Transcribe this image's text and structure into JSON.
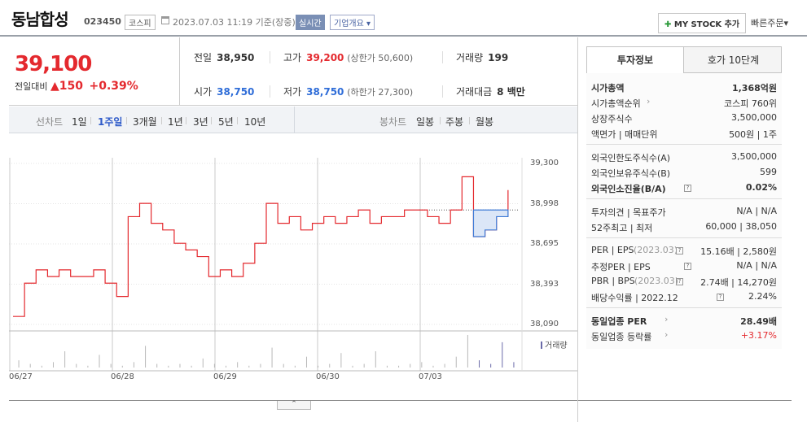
{
  "header": {
    "stock_name": "동남합성",
    "stock_code": "023450",
    "market": "코스피",
    "timestamp": "2023.07.03 11:19 기준(장중)",
    "realtime_label": "실시간",
    "overview_label": "기업개요",
    "mystock_label": "MY STOCK 추가",
    "quick_order_label": "빠른주문"
  },
  "price": {
    "current": "39,100",
    "change_label": "전일대비",
    "change": "▲150",
    "change_pct": "+0.39%"
  },
  "stats": {
    "prev_close_label": "전일",
    "prev_close": "38,950",
    "high_label": "고가",
    "high": "39,200",
    "upper_limit": "(상한가 50,600)",
    "volume_label": "거래량",
    "volume": "199",
    "open_label": "시가",
    "open": "38,750",
    "low_label": "저가",
    "low": "38,750",
    "lower_limit": "(하한가 27,300)",
    "amount_label": "거래대금",
    "amount": "8 백만"
  },
  "toolbar": {
    "line_label": "선차트",
    "line_periods": [
      "1일",
      "1주일",
      "3개월",
      "1년",
      "3년",
      "5년",
      "10년"
    ],
    "active_period": "1주일",
    "candle_label": "봉차트",
    "candle_periods": [
      "일봉",
      "주봉",
      "월봉"
    ]
  },
  "chart_data": {
    "type": "line",
    "y_ticks": [
      "39,300",
      "38,998",
      "38,695",
      "38,393",
      "38,090"
    ],
    "x_ticks": [
      "06/27",
      "06/28",
      "06/29",
      "06/30",
      "07/03"
    ],
    "ylim": [
      38090,
      39300
    ],
    "volume_label": "거래량",
    "reference_price": 38950,
    "series": [
      {
        "color": "#e4292e",
        "values": [
          38150,
          38400,
          38500,
          38450,
          38500,
          38450,
          38450,
          38500,
          38400,
          38300,
          38900,
          39000,
          38850,
          38800,
          38700,
          38650,
          38600,
          38450,
          38500,
          38450,
          38550,
          38700,
          39000,
          38850,
          38900,
          38800,
          38850,
          38900,
          38850,
          38900,
          38950,
          38850,
          38900,
          38900,
          38950,
          38950,
          38900,
          38850,
          38950,
          39200,
          38750,
          38800,
          38900,
          39100
        ]
      }
    ],
    "volume": [
      4,
      2,
      1,
      3,
      9,
      2,
      1,
      7,
      2,
      1,
      3,
      12,
      2,
      1,
      2,
      1,
      5,
      2,
      1,
      3,
      1,
      2,
      11,
      2,
      1,
      6,
      1,
      2,
      8,
      1,
      2,
      9,
      1,
      1,
      2,
      3,
      1,
      2,
      6,
      18,
      4,
      2,
      14,
      3
    ]
  },
  "right_panel": {
    "tabs": [
      "투자정보",
      "호가 10단계"
    ],
    "active_tab": "투자정보",
    "groups": [
      [
        {
          "k": "시가총액",
          "v": "1,368억원",
          "kb": true,
          "vb": true
        },
        {
          "k": "시가총액순위",
          "v": "코스피 760위",
          "arrow": true
        },
        {
          "k": "상장주식수",
          "v": "3,500,000"
        },
        {
          "k": "액면가 | 매매단위",
          "v": "500원 | 1주"
        }
      ],
      [
        {
          "k": "외국인한도주식수(A)",
          "v": "3,500,000"
        },
        {
          "k": "외국인보유주식수(B)",
          "v": "599"
        },
        {
          "k": "외국인소진율(B/A)",
          "v": "0.02%",
          "kb": true,
          "vb": true,
          "q": true
        }
      ],
      [
        {
          "k": "투자의견 | 목표주가",
          "v": "N/A | N/A"
        },
        {
          "k": "52주최고 | 최저",
          "v": "60,000 | 38,050"
        }
      ],
      [
        {
          "k": "PER | EPS",
          "k2": "(2023.03)",
          "v": "15.16배 | 2,580원",
          "q": true
        },
        {
          "k": "추정PER | EPS",
          "v": "N/A | N/A",
          "q": true
        },
        {
          "k": "PBR | BPS",
          "k2": "(2023.03)",
          "v": "2.74배 | 14,270원",
          "q": true
        },
        {
          "k": "배당수익률 | 2022.12",
          "v": "2.24%",
          "q": true
        }
      ],
      [
        {
          "k": "동일업종 PER",
          "v": "28.49배",
          "kb": true,
          "vb": true,
          "arrow": true
        },
        {
          "k": "동일업종 등락률",
          "v": "+3.17%",
          "red": true,
          "arrow": true
        }
      ]
    ]
  }
}
